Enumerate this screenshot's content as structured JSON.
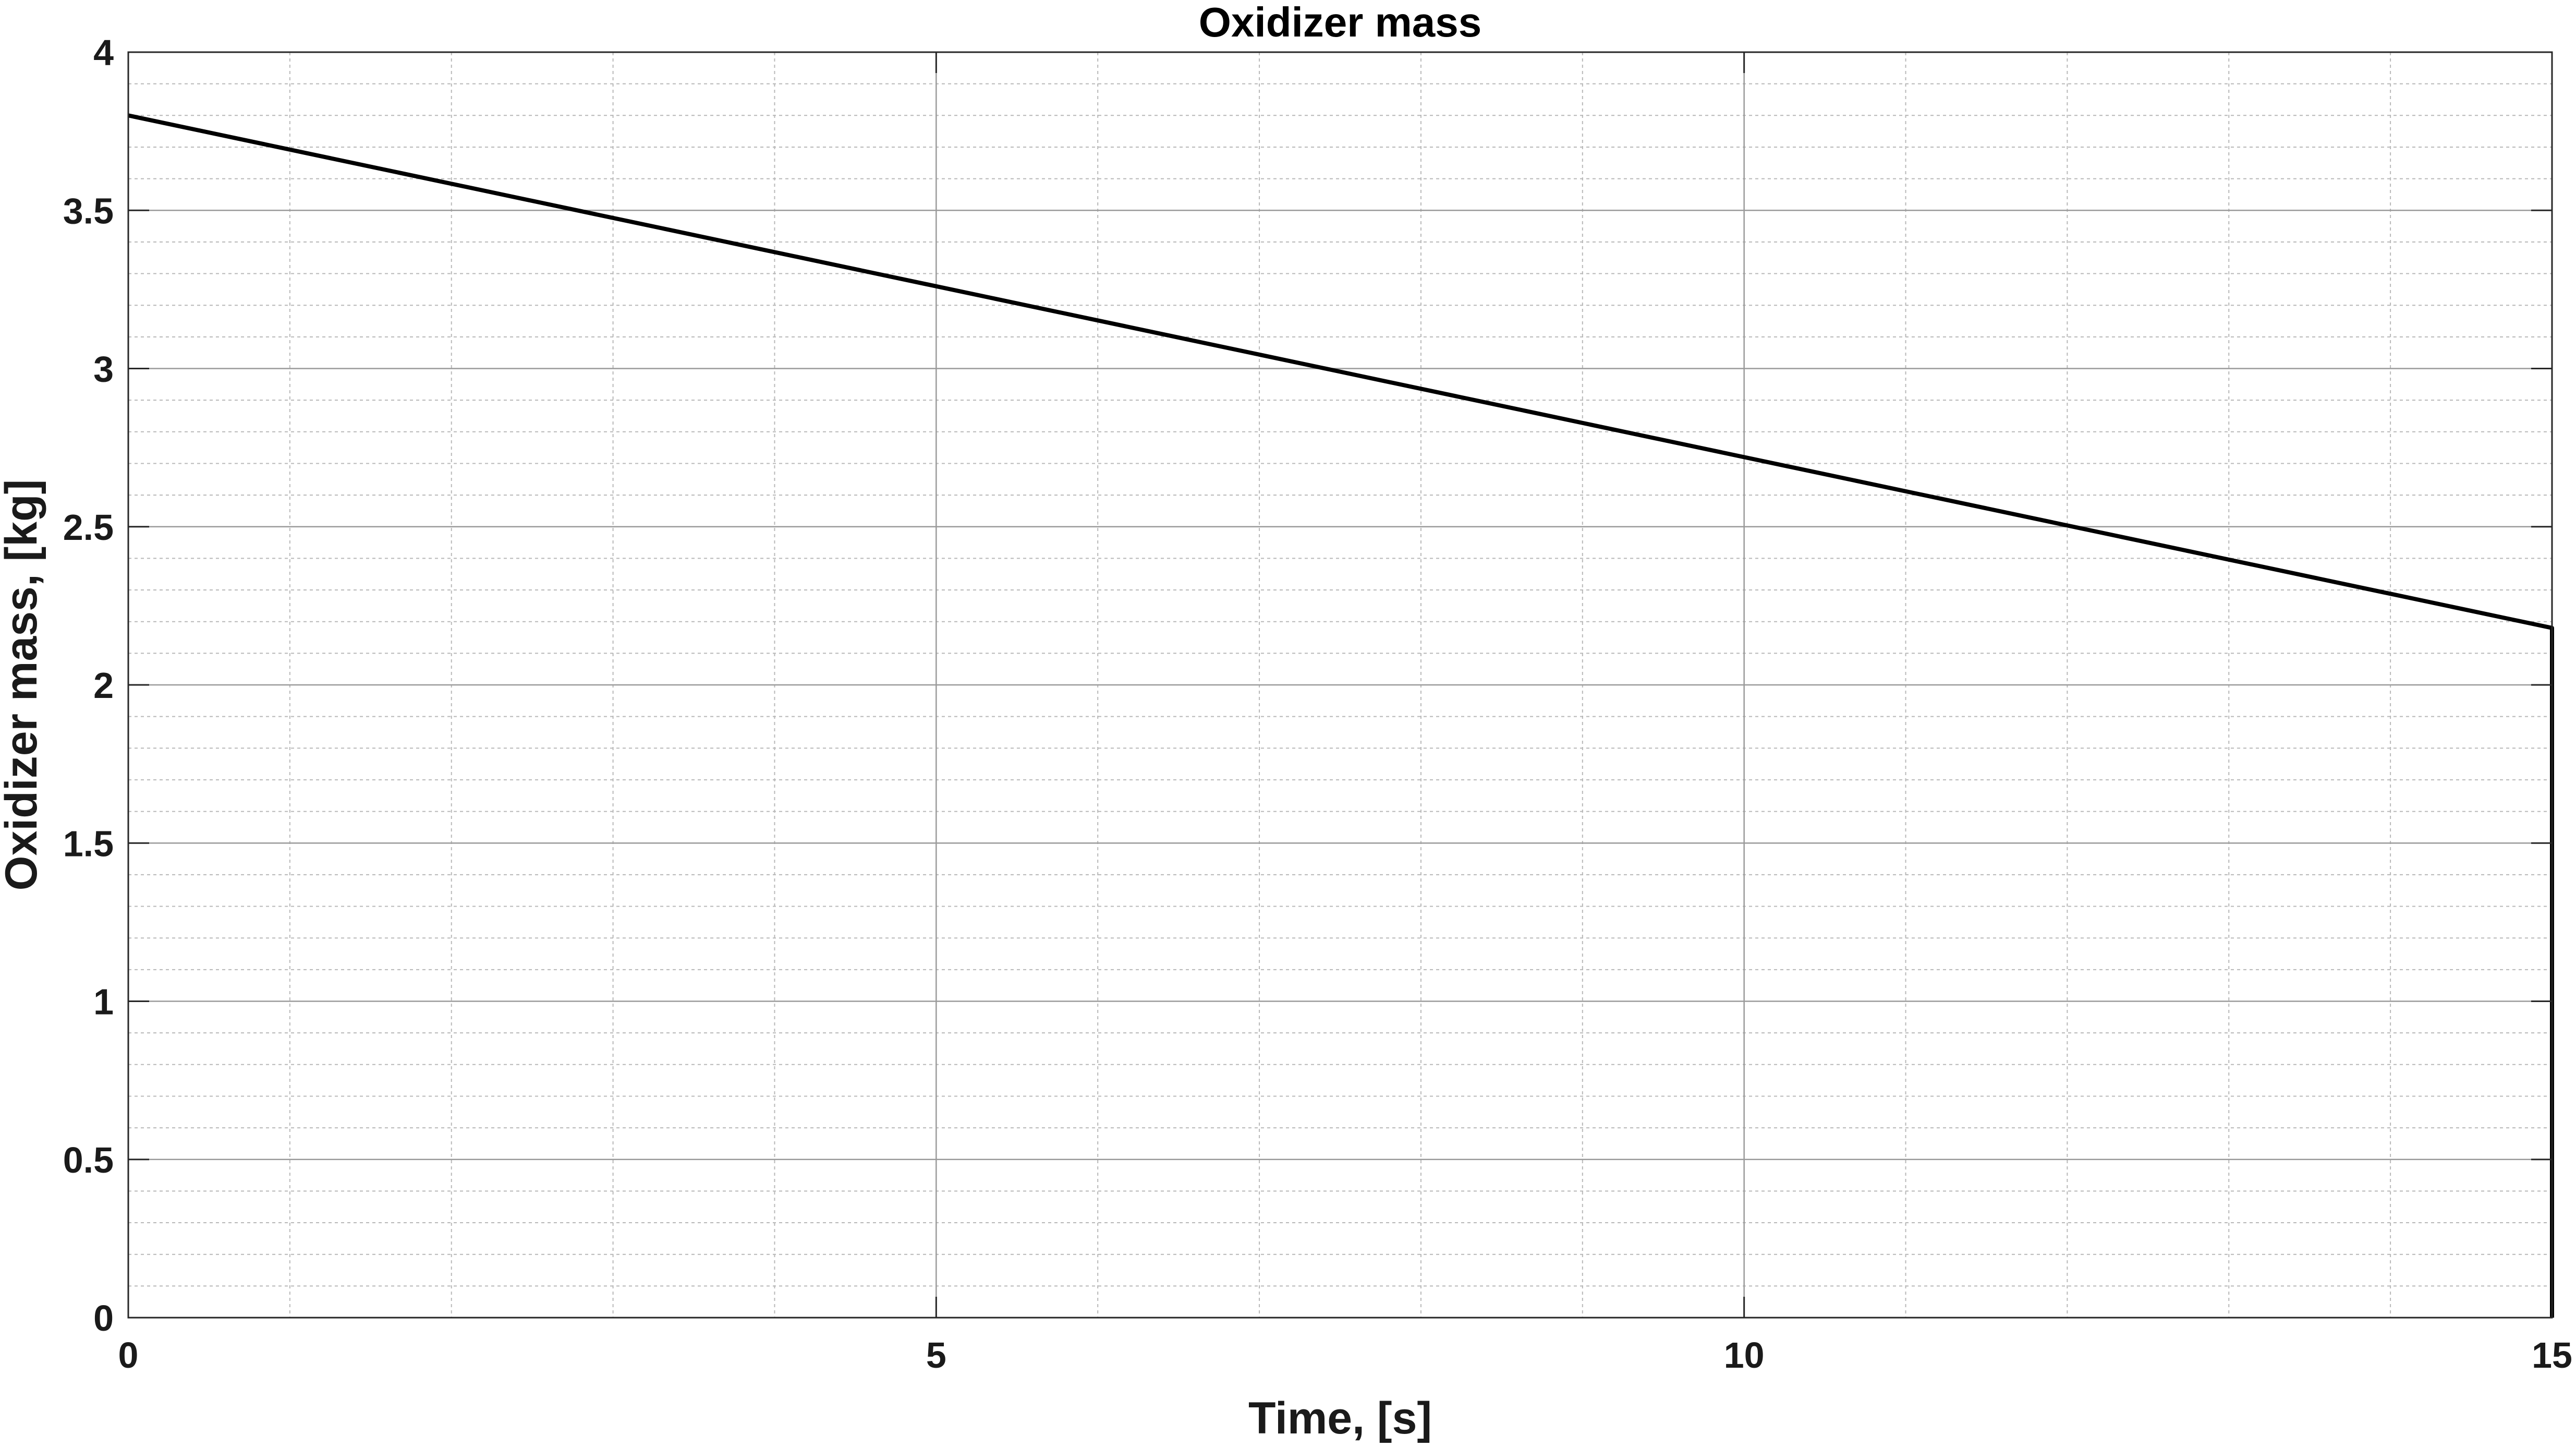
{
  "chart_data": {
    "type": "line",
    "title": "Oxidizer mass",
    "xlabel": "Time, [s]",
    "ylabel": "Oxidizer mass, [kg]",
    "xlim": [
      0,
      15
    ],
    "ylim": [
      0,
      4
    ],
    "x_ticks": [
      0,
      5,
      10,
      15
    ],
    "x_tick_labels": [
      "0",
      "5",
      "10",
      "15"
    ],
    "y_ticks": [
      0,
      0.5,
      1,
      1.5,
      2,
      2.5,
      3,
      3.5,
      4
    ],
    "y_tick_labels": [
      "0",
      "0.5",
      "1",
      "1.5",
      "2",
      "2.5",
      "3",
      "3.5",
      "4"
    ],
    "x_minor_step": 1,
    "y_minor_step": 0.1,
    "grid": true,
    "minor_grid": true,
    "line_color": "#000000",
    "series": [
      {
        "x": [
          0,
          15,
          15
        ],
        "y": [
          3.8,
          2.18,
          0
        ]
      }
    ]
  }
}
